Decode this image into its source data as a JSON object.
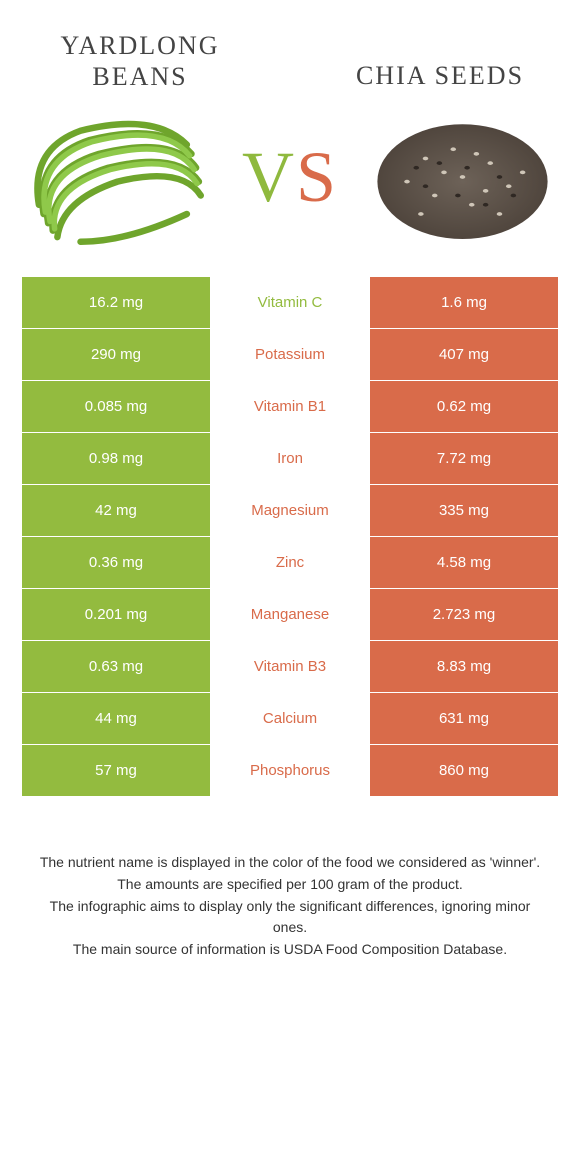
{
  "colors": {
    "left": "#93bb3f",
    "right": "#d96b4a",
    "row_text": "#ffffff",
    "bg": "#ffffff"
  },
  "foods": {
    "left": {
      "title": "Yardlong beans"
    },
    "right": {
      "title": "Chia seeds"
    }
  },
  "vs": {
    "v": "V",
    "s": "S"
  },
  "nutrients": [
    {
      "name": "Vitamin C",
      "left": "16.2 mg",
      "right": "1.6 mg",
      "winner": "left"
    },
    {
      "name": "Potassium",
      "left": "290 mg",
      "right": "407 mg",
      "winner": "right"
    },
    {
      "name": "Vitamin B1",
      "left": "0.085 mg",
      "right": "0.62 mg",
      "winner": "right"
    },
    {
      "name": "Iron",
      "left": "0.98 mg",
      "right": "7.72 mg",
      "winner": "right"
    },
    {
      "name": "Magnesium",
      "left": "42 mg",
      "right": "335 mg",
      "winner": "right"
    },
    {
      "name": "Zinc",
      "left": "0.36 mg",
      "right": "4.58 mg",
      "winner": "right"
    },
    {
      "name": "Manganese",
      "left": "0.201 mg",
      "right": "2.723 mg",
      "winner": "right"
    },
    {
      "name": "Vitamin B3",
      "left": "0.63 mg",
      "right": "8.83 mg",
      "winner": "right"
    },
    {
      "name": "Calcium",
      "left": "44 mg",
      "right": "631 mg",
      "winner": "right"
    },
    {
      "name": "Phosphorus",
      "left": "57 mg",
      "right": "860 mg",
      "winner": "right"
    }
  ],
  "footnotes": [
    "The nutrient name is displayed in the color of the food we considered as 'winner'.",
    "The amounts are specified per 100 gram of the product.",
    "The infographic aims to display only the significant differences, ignoring minor ones.",
    "The main source of information is USDA Food Composition Database."
  ]
}
